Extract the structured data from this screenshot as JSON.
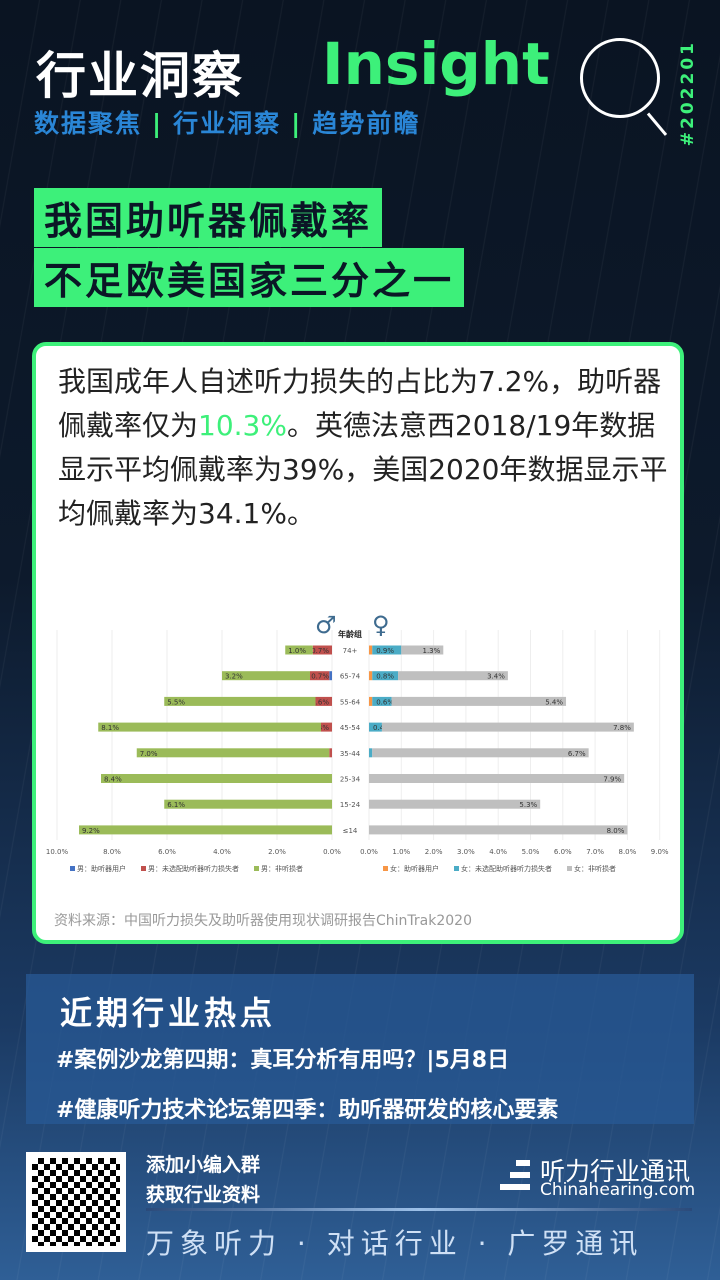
{
  "header": {
    "title_cn": "行业洞察",
    "title_en": "Insight",
    "subtitle": [
      "数据聚焦",
      "行业洞察",
      "趋势前瞻"
    ],
    "separator": "|",
    "issue": "#202201"
  },
  "headline": [
    "我国助听器佩戴率",
    "不足欧美国家三分之一"
  ],
  "summary": {
    "part1": "我国成年人自述听力损失的占比为7.2%，助听器佩戴率仅为",
    "highlight": "10.3%",
    "part2": "。英德法意西2018/19年数据显示平均佩戴率为39%，美国2020年数据显示平均佩戴率为34.1%。"
  },
  "source": "资料来源：中国听力损失及助听器使用现状调研报告ChinTrak2020",
  "hot": {
    "title": "近期行业热点",
    "items": [
      "#案例沙龙第四期：真耳分析有用吗？|5月8日",
      "#健康听力技术论坛第四季：助听器研发的核心要素"
    ]
  },
  "footer": {
    "promo": [
      "添加小编入群",
      "获取行业资料"
    ],
    "logo_cn": "听力行业通讯",
    "logo_en": "Chinahearing.com",
    "slogan": "万象听力 · 对话行业 · 广罗通讯"
  },
  "colors": {
    "accent": "#3df07a",
    "male_user": "#4472c4",
    "male_unfit": "#c0504d",
    "male_non": "#9bbb59",
    "female_user": "#f79646",
    "female_unfit": "#4bacc6",
    "female_non": "#bfbfbf"
  },
  "chart_data": {
    "type": "bar",
    "orientation": "horizontal",
    "layout": "population-pyramid",
    "category_label": "年龄组",
    "male_symbol": "♂",
    "female_symbol": "♀",
    "categories": [
      "74+",
      "65-74",
      "55-64",
      "45-54",
      "35-44",
      "25-34",
      "15-24",
      "≤14"
    ],
    "male": {
      "xlim": [
        0,
        10
      ],
      "ticks": [
        "10.0%",
        "8.0%",
        "6.0%",
        "4.0%",
        "2.0%",
        "0.0%"
      ],
      "tick_values": [
        10,
        8,
        6,
        4,
        2,
        0
      ],
      "series": [
        {
          "name": "男：助听器用户",
          "values": [
            0,
            0.1,
            0,
            0,
            0,
            0,
            0,
            0
          ]
        },
        {
          "name": "男：未选配助听器听力损失者",
          "values": [
            0.7,
            0.7,
            0.6,
            0.4,
            0.1,
            0,
            0,
            0
          ],
          "labels": [
            "0.7%",
            "0.7%",
            "0.6%",
            "0.4%",
            "0.1%",
            "",
            "",
            ""
          ]
        },
        {
          "name": "男：非听损者",
          "values": [
            1.0,
            3.2,
            5.5,
            8.1,
            7.0,
            8.4,
            6.1,
            9.2
          ],
          "labels": [
            "1.0%",
            "3.2%",
            "5.5%",
            "8.1%",
            "7.0%",
            "8.4%",
            "6.1%",
            "9.2%"
          ]
        }
      ]
    },
    "female": {
      "xlim": [
        0,
        9
      ],
      "ticks": [
        "0.0%",
        "1.0%",
        "2.0%",
        "3.0%",
        "4.0%",
        "5.0%",
        "6.0%",
        "7.0%",
        "8.0%",
        "9.0%"
      ],
      "tick_values": [
        0,
        1,
        2,
        3,
        4,
        5,
        6,
        7,
        8,
        9
      ],
      "series": [
        {
          "name": "女：助听器用户",
          "values": [
            0.1,
            0.1,
            0.1,
            0,
            0,
            0,
            0,
            0
          ]
        },
        {
          "name": "女：未选配助听器听力损失者",
          "values": [
            0.9,
            0.8,
            0.6,
            0.4,
            0.1,
            0,
            0,
            0
          ],
          "labels": [
            "0.9%",
            "0.8%",
            "0.6%",
            "0.4%",
            "0.1%",
            "",
            "",
            ""
          ]
        },
        {
          "name": "女：非听损者",
          "values": [
            1.3,
            3.4,
            5.4,
            7.8,
            6.7,
            7.9,
            5.3,
            8.0
          ],
          "labels": [
            "1.3%",
            "3.4%",
            "5.4%",
            "7.8%",
            "6.7%",
            "7.9%",
            "5.3%",
            "8.0%"
          ]
        }
      ]
    },
    "grid": true,
    "legend": "bottom"
  }
}
